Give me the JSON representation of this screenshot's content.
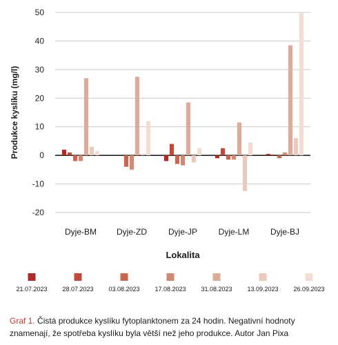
{
  "chart_data": {
    "type": "bar",
    "ylabel": "Produkce kyslíku (mg/l)",
    "xlabel": "Lokalita",
    "ylim": [
      -20,
      50
    ],
    "yticks": [
      -20,
      -10,
      0,
      10,
      20,
      30,
      40,
      50
    ],
    "grid": true,
    "legend_position": "bottom",
    "categories": [
      "Dyje-BM",
      "Dyje-ZD",
      "Dyje-JP",
      "Dyje-LM",
      "Dyje-BJ"
    ],
    "series": [
      {
        "name": "21.07.2023",
        "color": "#b02a2a",
        "values": [
          2.0,
          0.0,
          -2.0,
          -1.0,
          0.5
        ]
      },
      {
        "name": "28.07.2023",
        "color": "#bf4a3b",
        "values": [
          1.0,
          0.0,
          4.0,
          2.5,
          0.3
        ]
      },
      {
        "name": "03.08.2023",
        "color": "#c8664f",
        "values": [
          -2.0,
          -4.0,
          -3.0,
          -1.5,
          -1.0
        ]
      },
      {
        "name": "17.08.2023",
        "color": "#d08a73",
        "values": [
          -2.0,
          -5.0,
          -3.5,
          -1.5,
          1.0
        ]
      },
      {
        "name": "31.08.2023",
        "color": "#ddab99",
        "values": [
          27.0,
          27.5,
          18.5,
          11.5,
          38.5
        ]
      },
      {
        "name": "13.09.2023",
        "color": "#e9cabc",
        "values": [
          3.0,
          0.5,
          -2.5,
          -12.5,
          6.0
        ]
      },
      {
        "name": "26.09.2023",
        "color": "#f2ddd3",
        "values": [
          1.5,
          12.0,
          2.5,
          4.5,
          50.0
        ]
      }
    ]
  },
  "caption": {
    "label": "Graf 1.",
    "text": "Čistá produkce kyslíku fytoplanktonem za 24 hodin. Negativní hodnoty znamenají, že spotřeba kyslíku byla větší než jeho produkce.",
    "author": "Autor Jan Pixa"
  }
}
